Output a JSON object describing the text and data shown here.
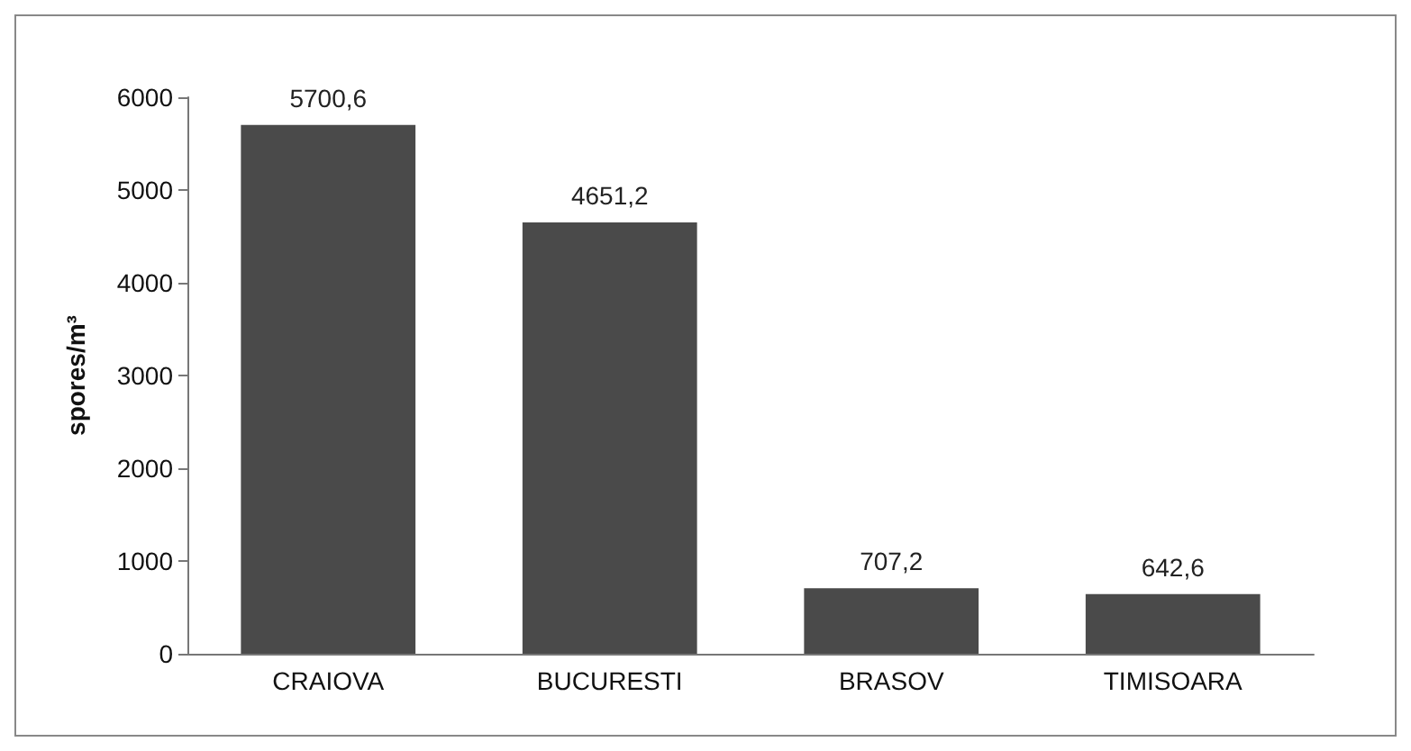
{
  "chart_data": {
    "type": "bar",
    "categories": [
      "CRAIOVA",
      "BUCURESTI",
      "BRASOV",
      "TIMISOARA"
    ],
    "values": [
      5700.6,
      4651.2,
      707.2,
      642.6
    ],
    "value_labels": [
      "5700,6",
      "4651,2",
      "707,2",
      "642,6"
    ],
    "color": "#4a4a4a",
    "ylabel": "spores/m³",
    "ylim": [
      0,
      6000
    ],
    "yticks": [
      0,
      1000,
      2000,
      3000,
      4000,
      5000,
      6000
    ],
    "grid": false
  }
}
